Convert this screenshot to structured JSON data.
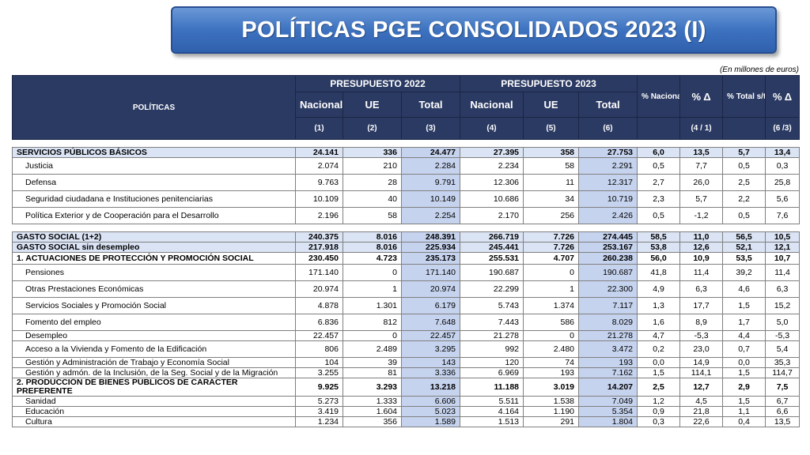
{
  "title": "POLÍTICAS PGE CONSOLIDADOS 2023 (I)",
  "units_note": "(En millones de euros)",
  "header": {
    "politicas": "POLÍTICAS",
    "presupuesto_2022": "PRESUPUESTO 2022",
    "presupuesto_2023": "PRESUPUESTO 2023",
    "nacional": "Nacional",
    "ue": "UE",
    "total": "Total",
    "pct_nacional": "% Nacional s/total",
    "pct_delta": "% Δ",
    "pct_total": "% Total s/total",
    "n1": "(1)",
    "n2": "(2)",
    "n3": "(3)",
    "n4": "(4)",
    "n5": "(5)",
    "n6": "(6)",
    "r41": "(4 / 1)",
    "r63": "(6 /3)"
  },
  "rows": [
    {
      "label": "SERVICIOS PÚBLICOS BÁSICOS",
      "v": [
        "24.141",
        "336",
        "24.477",
        "27.395",
        "358",
        "27.753",
        "6,0",
        "13,5",
        "5,7",
        "13,4"
      ]
    },
    {
      "label": "Justicia",
      "v": [
        "2.074",
        "210",
        "2.284",
        "2.234",
        "58",
        "2.291",
        "0,5",
        "7,7",
        "0,5",
        "0,3"
      ]
    },
    {
      "label": "Defensa",
      "v": [
        "9.763",
        "28",
        "9.791",
        "12.306",
        "11",
        "12.317",
        "2,7",
        "26,0",
        "2,5",
        "25,8"
      ]
    },
    {
      "label": "Seguridad ciudadana e Instituciones penitenciarias",
      "v": [
        "10.109",
        "40",
        "10.149",
        "10.686",
        "34",
        "10.719",
        "2,3",
        "5,7",
        "2,2",
        "5,6"
      ]
    },
    {
      "label": "Política Exterior y de Cooperación para el Desarrollo",
      "v": [
        "2.196",
        "58",
        "2.254",
        "2.170",
        "256",
        "2.426",
        "0,5",
        "-1,2",
        "0,5",
        "7,6"
      ]
    },
    {
      "label": "GASTO SOCIAL (1+2)",
      "v": [
        "240.375",
        "8.016",
        "248.391",
        "266.719",
        "7.726",
        "274.445",
        "58,5",
        "11,0",
        "56,5",
        "10,5"
      ]
    },
    {
      "label": "GASTO SOCIAL sin desempleo",
      "v": [
        "217.918",
        "8.016",
        "225.934",
        "245.441",
        "7.726",
        "253.167",
        "53,8",
        "12,6",
        "52,1",
        "12,1"
      ]
    },
    {
      "label": "1. ACTUACIONES DE PROTECCIÓN Y PROMOCIÓN SOCIAL",
      "v": [
        "230.450",
        "4.723",
        "235.173",
        "255.531",
        "4.707",
        "260.238",
        "56,0",
        "10,9",
        "53,5",
        "10,7"
      ]
    },
    {
      "label": "Pensiones",
      "v": [
        "171.140",
        "0",
        "171.140",
        "190.687",
        "0",
        "190.687",
        "41,8",
        "11,4",
        "39,2",
        "11,4"
      ]
    },
    {
      "label": "Otras Prestaciones Económicas",
      "v": [
        "20.974",
        "1",
        "20.974",
        "22.299",
        "1",
        "22.300",
        "4,9",
        "6,3",
        "4,6",
        "6,3"
      ]
    },
    {
      "label": "Servicios Sociales y Promoción Social",
      "v": [
        "4.878",
        "1.301",
        "6.179",
        "5.743",
        "1.374",
        "7.117",
        "1,3",
        "17,7",
        "1,5",
        "15,2"
      ]
    },
    {
      "label": "Fomento del empleo",
      "v": [
        "6.836",
        "812",
        "7.648",
        "7.443",
        "586",
        "8.029",
        "1,6",
        "8,9",
        "1,7",
        "5,0"
      ]
    },
    {
      "label": "Desempleo",
      "v": [
        "22.457",
        "0",
        "22.457",
        "21.278",
        "0",
        "21.278",
        "4,7",
        "-5,3",
        "4,4",
        "-5,3"
      ]
    },
    {
      "label": "Acceso a la Vivienda y Fomento de la Edificación",
      "v": [
        "806",
        "2.489",
        "3.295",
        "992",
        "2.480",
        "3.472",
        "0,2",
        "23,0",
        "0,7",
        "5,4"
      ]
    },
    {
      "label": "Gestión y Administración de Trabajo y Economía Social",
      "v": [
        "104",
        "39",
        "143",
        "120",
        "74",
        "193",
        "0,0",
        "14,9",
        "0,0",
        "35,3"
      ]
    },
    {
      "label": "Gestión y admón. de la Inclusión, de la Seg. Social y de la Migración",
      "v": [
        "3.255",
        "81",
        "3.336",
        "6.969",
        "193",
        "7.162",
        "1,5",
        "114,1",
        "1,5",
        "114,7"
      ]
    },
    {
      "label": "2. PRODUCCIÓN DE BIENES PÚBLICOS DE CARÁCTER PREFERENTE",
      "v": [
        "9.925",
        "3.293",
        "13.218",
        "11.188",
        "3.019",
        "14.207",
        "2,5",
        "12,7",
        "2,9",
        "7,5"
      ]
    },
    {
      "label": "Sanidad",
      "v": [
        "5.273",
        "1.333",
        "6.606",
        "5.511",
        "1.538",
        "7.049",
        "1,2",
        "4,5",
        "1,5",
        "6,7"
      ]
    },
    {
      "label": "Educación",
      "v": [
        "3.419",
        "1.604",
        "5.023",
        "4.164",
        "1.190",
        "5.354",
        "0,9",
        "21,8",
        "1,1",
        "6,6"
      ]
    },
    {
      "label": "Cultura",
      "v": [
        "1.234",
        "356",
        "1.589",
        "1.513",
        "291",
        "1.804",
        "0,3",
        "22,6",
        "0,4",
        "13,5"
      ]
    }
  ]
}
